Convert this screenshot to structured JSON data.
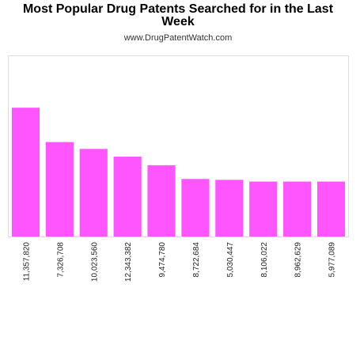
{
  "header": {
    "title_line1": "Most Popular Drug Patents Searched for in the Last",
    "title_line2": "Week",
    "subtitle": "www.DrugPatentWatch.com"
  },
  "colors": {
    "bar": "#ff55ff",
    "frame": "#dddddd"
  },
  "chart_data": {
    "type": "bar",
    "title": "Most Popular Drug Patents Searched for in the Last Week",
    "categories": [
      "11,357,820",
      "7,326,708",
      "10,023,560",
      "12,343,382",
      "9,474,780",
      "8,722,684",
      "5,030,447",
      "8,106,022",
      "8,962,629",
      "5,977,089"
    ],
    "values": [
      15,
      11,
      10.2,
      9.3,
      8.3,
      6.7,
      6.6,
      6.4,
      6.4,
      6.4
    ],
    "ylim": [
      0,
      21
    ],
    "xlabel": "",
    "ylabel": "",
    "grid": false,
    "legend": "none"
  }
}
